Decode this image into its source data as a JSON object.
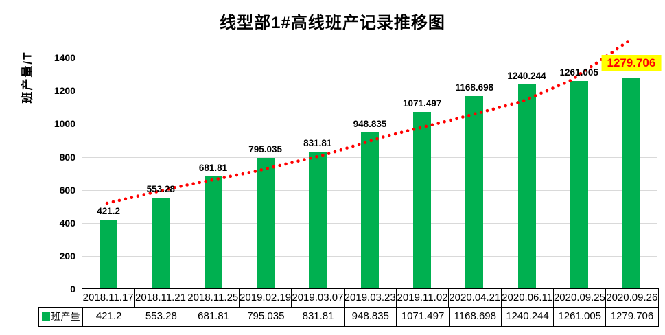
{
  "chart_data": {
    "type": "bar",
    "title": "线型部1#高线班产记录推移图",
    "ylabel": "班产量/T",
    "series_name": "班产量",
    "categories": [
      "2018.11.17",
      "2018.11.21",
      "2018.11.25",
      "2019.02.19",
      "2019.03.07",
      "2019.03.23",
      "2019.11.02",
      "2020.04.21",
      "2020.06.11",
      "2020.09.25",
      "2020.09.26"
    ],
    "values": [
      421.2,
      553.28,
      681.81,
      795.035,
      831.81,
      948.835,
      1071.497,
      1168.698,
      1240.244,
      1261.005,
      1279.706
    ],
    "value_labels": [
      "421.2",
      "553.28",
      "681.81",
      "795.035",
      "831.81",
      "948.835",
      "1071.497",
      "1168.698",
      "1240.244",
      "1261.005",
      "1279.706"
    ],
    "ylim": [
      0,
      1500
    ],
    "yticks": [
      0,
      200,
      400,
      600,
      800,
      1000,
      1200,
      1400
    ],
    "grid": true,
    "legend_position": "bottom-left-table",
    "colors": {
      "bar": "#00B050",
      "gridline": "#d9d9d9",
      "trendline": "#FF0000",
      "highlight_bg": "#FFFF00",
      "highlight_text": "#FF0000",
      "text": "#000000"
    },
    "trendline": {
      "style": "dotted",
      "color": "#FF0000"
    },
    "highlight": {
      "index": 10,
      "bg": "#FFFF00",
      "text_color": "#FF0000"
    }
  }
}
